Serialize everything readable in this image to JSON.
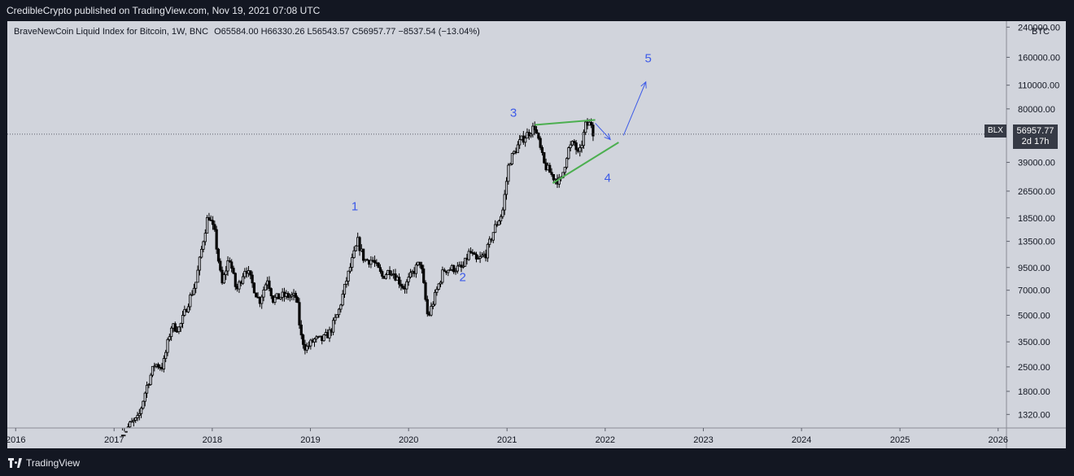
{
  "header": {
    "published": "CredibleCrypto published on TradingView.com, Nov 19, 2021 07:08 UTC"
  },
  "legend": {
    "symbol": "BraveNewCoin Liquid Index for Bitcoin, 1W, BNC",
    "open": "O65584.00",
    "high": "H66330.26",
    "low": "L56543.57",
    "close": "C56957.77",
    "change": "−8537.54 (−13.04%)"
  },
  "price_tag": {
    "symbol": "BLX",
    "price": "56957.77",
    "countdown": "2d 17h"
  },
  "footer": {
    "brand": "TradingView"
  },
  "colors": {
    "frame": "#131722",
    "plot": "#d1d4dc",
    "candle": "#000000",
    "wave": "#3c5ae8",
    "trendline": "#4caf50"
  },
  "chart_data": {
    "type": "candlestick",
    "y_scale": "log",
    "y_unit": "BTC",
    "ylim": [
      1100,
      260000
    ],
    "xlim": [
      "2015-12-01",
      "2026-02-01"
    ],
    "y_ticks": [
      1320,
      1800,
      2500,
      3500,
      5000,
      7000,
      9500,
      13500,
      18500,
      26500,
      39000,
      80000,
      110000,
      160000,
      240000
    ],
    "y_tick_labels": [
      "1320.00",
      "1800.00",
      "2500.00",
      "3500.00",
      "5000.00",
      "7000.00",
      "9500.00",
      "13500.00",
      "18500.00",
      "26500.00",
      "39000.00",
      "80000.00",
      "110000.00",
      "160000.00",
      "240000.00"
    ],
    "x_ticks": [
      "2016-01-01",
      "2017-01-01",
      "2018-01-01",
      "2019-01-01",
      "2020-01-01",
      "2021-01-01",
      "2022-01-01",
      "2023-01-01",
      "2024-01-01",
      "2025-01-01",
      "2026-01-01"
    ],
    "x_tick_labels": [
      "2016",
      "2017",
      "2018",
      "2019",
      "2020",
      "2021",
      "2022",
      "2023",
      "2024",
      "2025",
      "2026"
    ],
    "last_price": 56957.77,
    "price_path": [
      [
        "2017-02-01",
        1000
      ],
      [
        "2017-03-01",
        1150
      ],
      [
        "2017-04-01",
        1250
      ],
      [
        "2017-05-01",
        1900
      ],
      [
        "2017-06-01",
        2600
      ],
      [
        "2017-07-01",
        2500
      ],
      [
        "2017-08-01",
        4300
      ],
      [
        "2017-09-01",
        4200
      ],
      [
        "2017-10-01",
        5800
      ],
      [
        "2017-11-01",
        7800
      ],
      [
        "2017-12-01",
        14500
      ],
      [
        "2017-12-17",
        19500
      ],
      [
        "2018-01-10",
        15000
      ],
      [
        "2018-02-06",
        7500
      ],
      [
        "2018-03-05",
        11000
      ],
      [
        "2018-04-01",
        6900
      ],
      [
        "2018-05-05",
        9600
      ],
      [
        "2018-06-25",
        6000
      ],
      [
        "2018-07-25",
        8200
      ],
      [
        "2018-08-15",
        6200
      ],
      [
        "2018-09-20",
        6500
      ],
      [
        "2018-11-10",
        6400
      ],
      [
        "2018-11-26",
        3800
      ],
      [
        "2018-12-15",
        3200
      ],
      [
        "2019-01-15",
        3600
      ],
      [
        "2019-02-15",
        3600
      ],
      [
        "2019-03-15",
        4000
      ],
      [
        "2019-04-15",
        5200
      ],
      [
        "2019-05-15",
        8000
      ],
      [
        "2019-06-26",
        13500
      ],
      [
        "2019-07-20",
        10500
      ],
      [
        "2019-08-20",
        10500
      ],
      [
        "2019-09-25",
        8400
      ],
      [
        "2019-10-27",
        9300
      ],
      [
        "2019-12-15",
        7200
      ],
      [
        "2020-01-15",
        8800
      ],
      [
        "2020-02-14",
        10300
      ],
      [
        "2020-03-13",
        4800
      ],
      [
        "2020-04-15",
        7000
      ],
      [
        "2020-05-10",
        9200
      ],
      [
        "2020-06-15",
        9400
      ],
      [
        "2020-07-20",
        9400
      ],
      [
        "2020-08-15",
        11800
      ],
      [
        "2020-09-10",
        10300
      ],
      [
        "2020-10-15",
        11500
      ],
      [
        "2020-11-15",
        16000
      ],
      [
        "2020-12-15",
        20000
      ],
      [
        "2021-01-08",
        39000
      ],
      [
        "2021-02-20",
        52000
      ],
      [
        "2021-04-14",
        63000
      ],
      [
        "2021-05-19",
        38000
      ],
      [
        "2021-06-22",
        32000
      ],
      [
        "2021-07-20",
        30000
      ],
      [
        "2021-08-15",
        46000
      ],
      [
        "2021-09-07",
        51000
      ],
      [
        "2021-09-25",
        42000
      ],
      [
        "2021-10-20",
        64000
      ],
      [
        "2021-11-10",
        66000
      ],
      [
        "2021-11-19",
        57000
      ]
    ],
    "trendlines": [
      {
        "from": [
          "2021-04-14",
          64500
        ],
        "to": [
          "2021-11-25",
          69000
        ]
      },
      {
        "from": [
          "2021-06-20",
          29500
        ],
        "to": [
          "2022-02-20",
          51000
        ]
      }
    ],
    "arrows": [
      {
        "from": [
          "2021-11-25",
          66000
        ],
        "to": [
          "2022-01-20",
          53000
        ]
      },
      {
        "from": [
          "2022-03-10",
          56000
        ],
        "to": [
          "2022-06-01",
          115000
        ]
      }
    ],
    "annotations": [
      {
        "text": "1",
        "x": "2019-06-15",
        "y": 20500
      },
      {
        "text": "2",
        "x": "2020-07-20",
        "y": 7900
      },
      {
        "text": "3",
        "x": "2021-01-25",
        "y": 72000
      },
      {
        "text": "4",
        "x": "2022-01-10",
        "y": 30000
      },
      {
        "text": "5",
        "x": "2022-06-10",
        "y": 150000
      }
    ]
  }
}
